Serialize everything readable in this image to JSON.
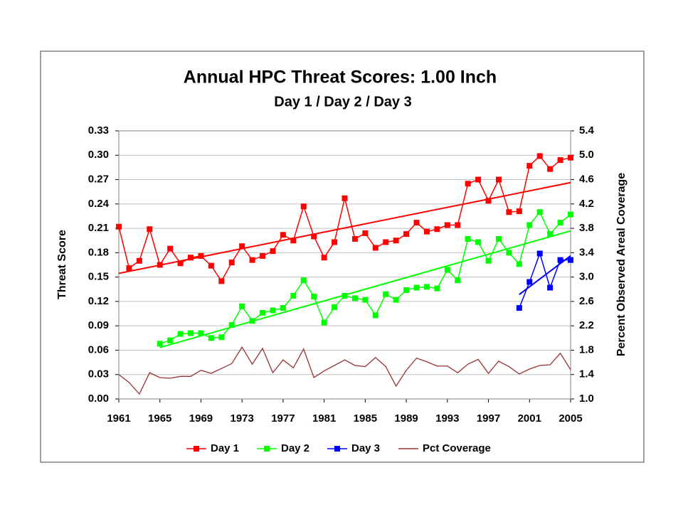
{
  "chart_data": {
    "type": "line",
    "title": "Annual HPC Threat Scores:  1.00 Inch",
    "subtitle": "Day 1 / Day 2 / Day 3",
    "ylabel": "Threat Score",
    "y2label": "Percent Observed Areal Coverage",
    "x": [
      1961,
      1962,
      1963,
      1964,
      1965,
      1966,
      1967,
      1968,
      1969,
      1970,
      1971,
      1972,
      1973,
      1974,
      1975,
      1976,
      1977,
      1978,
      1979,
      1980,
      1981,
      1982,
      1983,
      1984,
      1985,
      1986,
      1987,
      1988,
      1989,
      1990,
      1991,
      1992,
      1993,
      1994,
      1995,
      1996,
      1997,
      1998,
      1999,
      2000,
      2001,
      2002,
      2003,
      2004,
      2005
    ],
    "xlim": [
      1961,
      2005
    ],
    "xticks": [
      1961,
      1965,
      1969,
      1973,
      1977,
      1981,
      1985,
      1989,
      1993,
      1997,
      2001,
      2005
    ],
    "ylim": [
      0,
      0.33
    ],
    "yticks": [
      {
        "value": 0,
        "label": "0.00"
      },
      0.03,
      0.06,
      0.09,
      0.12,
      0.15,
      0.18,
      0.21,
      0.24,
      0.27,
      {
        "value": 0.3,
        "label": "0.30"
      },
      0.33
    ],
    "y2lim": [
      1.0,
      5.4
    ],
    "y2ticks": [
      {
        "value": 1,
        "label": "1.0"
      },
      1.4,
      1.8,
      2.2,
      2.6,
      {
        "value": 3,
        "label": "3.0"
      },
      3.4,
      3.8,
      4.2,
      4.6,
      {
        "value": 5,
        "label": "5.0"
      },
      5.4
    ],
    "grid": true,
    "trendlines": true,
    "legend": "bottom",
    "series": [
      {
        "name": "Day 1",
        "color": "#ff0000",
        "marker": "square",
        "values": [
          0.212,
          0.161,
          0.17,
          0.209,
          0.165,
          0.185,
          0.167,
          0.174,
          0.176,
          0.164,
          0.145,
          0.168,
          0.188,
          0.171,
          0.176,
          0.182,
          0.202,
          0.195,
          0.237,
          0.2,
          0.174,
          0.193,
          0.247,
          0.197,
          0.204,
          0.186,
          0.193,
          0.195,
          0.203,
          0.217,
          0.206,
          0.209,
          0.214,
          0.214,
          0.265,
          0.27,
          0.244,
          0.27,
          0.23,
          0.231,
          0.287,
          0.299,
          0.283,
          0.294,
          0.297
        ]
      },
      {
        "name": "Day 2",
        "color": "#00ff00",
        "marker": "square",
        "values": [
          null,
          null,
          null,
          null,
          0.068,
          0.072,
          0.08,
          0.081,
          0.081,
          0.075,
          0.076,
          0.091,
          0.114,
          0.096,
          0.106,
          0.109,
          0.112,
          0.127,
          0.146,
          0.126,
          0.094,
          0.113,
          0.127,
          0.124,
          0.122,
          0.103,
          0.129,
          0.122,
          0.134,
          0.137,
          0.138,
          0.136,
          0.159,
          0.146,
          0.197,
          0.193,
          0.17,
          0.197,
          0.18,
          0.166,
          0.214,
          0.23,
          0.203,
          0.217,
          0.227
        ]
      },
      {
        "name": "Day 3",
        "color": "#0000ff",
        "marker": "square",
        "values": [
          null,
          null,
          null,
          null,
          null,
          null,
          null,
          null,
          null,
          null,
          null,
          null,
          null,
          null,
          null,
          null,
          null,
          null,
          null,
          null,
          null,
          null,
          null,
          null,
          null,
          null,
          null,
          null,
          null,
          null,
          null,
          null,
          null,
          null,
          null,
          null,
          null,
          null,
          null,
          0.112,
          0.144,
          0.179,
          0.137,
          0.171,
          0.171
        ]
      },
      {
        "name": "Pct Coverage",
        "color": "#993333",
        "axis": "y2",
        "values": [
          1.4,
          1.27,
          1.08,
          1.43,
          1.35,
          1.34,
          1.37,
          1.37,
          1.47,
          1.42,
          1.5,
          1.58,
          1.85,
          1.57,
          1.83,
          1.43,
          1.64,
          1.51,
          1.82,
          1.35,
          1.46,
          1.55,
          1.64,
          1.55,
          1.53,
          1.68,
          1.53,
          1.21,
          1.47,
          1.67,
          1.61,
          1.54,
          1.54,
          1.43,
          1.57,
          1.65,
          1.42,
          1.62,
          1.53,
          1.41,
          1.49,
          1.55,
          1.56,
          1.75,
          1.48
        ]
      }
    ]
  }
}
